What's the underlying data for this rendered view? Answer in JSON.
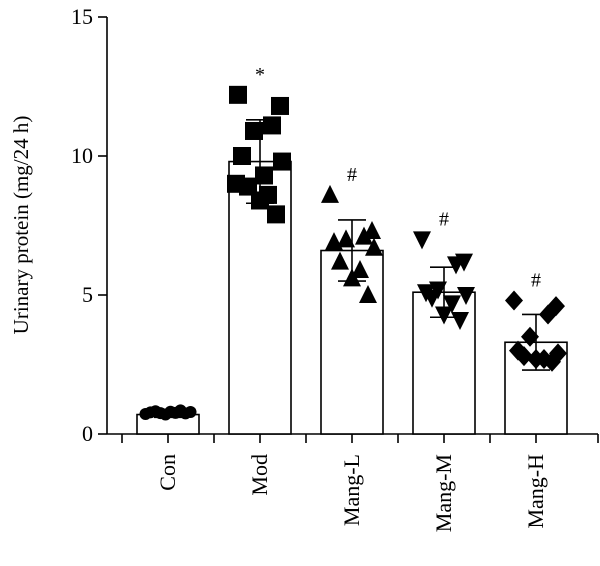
{
  "chart_data": {
    "type": "bar",
    "ylabel": "Urinary protein (mg/24 h)",
    "xlabel": "",
    "ylim": [
      0,
      15
    ],
    "yticks": [
      0,
      5,
      10,
      15
    ],
    "categories": [
      "Con",
      "Mod",
      "Mang-L",
      "Mang-M",
      "Mang-H"
    ],
    "values": [
      0.7,
      9.8,
      6.6,
      5.1,
      3.3
    ],
    "errors": [
      0.1,
      1.5,
      1.1,
      0.9,
      1.0
    ],
    "markers": [
      "circle",
      "square",
      "triangle-up",
      "triangle-down",
      "diamond"
    ],
    "significance": [
      "",
      "*",
      "#",
      "#",
      "#"
    ],
    "points": [
      [
        0.72,
        0.78,
        0.82,
        0.75,
        0.7,
        0.8,
        0.76,
        0.85,
        0.74,
        0.79
      ],
      [
        12.2,
        11.8,
        11.1,
        10.9,
        10.0,
        9.8,
        8.9,
        8.6,
        8.4,
        7.9,
        9.0,
        9.3
      ],
      [
        8.6,
        7.3,
        7.1,
        7.0,
        6.9,
        6.7,
        6.2,
        5.9,
        5.6,
        5.0
      ],
      [
        7.0,
        6.2,
        6.1,
        5.2,
        5.1,
        5.0,
        4.9,
        4.7,
        4.3,
        4.1
      ],
      [
        4.8,
        4.6,
        4.3,
        3.5,
        3.0,
        2.9,
        2.8,
        2.7,
        2.7,
        2.6
      ]
    ]
  }
}
